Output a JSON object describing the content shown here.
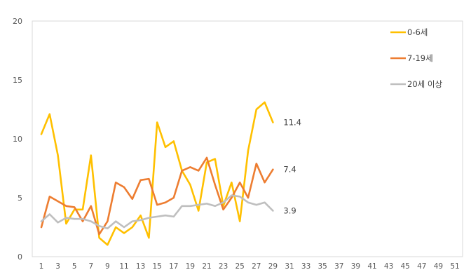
{
  "chart_data": {
    "type": "line",
    "xlabel": "",
    "ylabel": "",
    "ylim": [
      0,
      20
    ],
    "yticks": [
      "0",
      "5",
      "10",
      "15",
      "20"
    ],
    "xticks": [
      "1",
      "3",
      "5",
      "7",
      "9",
      "11",
      "13",
      "15",
      "17",
      "19",
      "21",
      "23",
      "25",
      "27",
      "29",
      "31",
      "33",
      "35",
      "37",
      "39",
      "41",
      "43",
      "45",
      "47",
      "49",
      "51"
    ],
    "x": [
      1,
      2,
      3,
      4,
      5,
      6,
      7,
      8,
      9,
      10,
      11,
      12,
      13,
      14,
      15,
      16,
      17,
      18,
      19,
      20,
      21,
      22,
      23,
      24,
      25,
      26,
      27,
      28,
      29
    ],
    "grid": false,
    "legend_position": "top-right",
    "series": [
      {
        "name": "0-6세",
        "color": "#FFC000",
        "values": [
          10.4,
          12.1,
          8.6,
          2.8,
          4.0,
          4.0,
          8.6,
          1.6,
          1.0,
          2.5,
          2.0,
          2.5,
          3.5,
          1.6,
          11.4,
          9.3,
          9.8,
          7.3,
          6.1,
          3.9,
          8.0,
          8.3,
          4.3,
          6.3,
          3.0,
          9.0,
          12.5,
          13.1,
          11.4
        ],
        "end_label": "11.4"
      },
      {
        "name": "7-19세",
        "color": "#ED7D31",
        "values": [
          2.5,
          5.1,
          4.7,
          4.3,
          4.2,
          3.0,
          4.3,
          1.9,
          3.0,
          6.3,
          5.9,
          4.9,
          6.5,
          6.6,
          4.4,
          4.6,
          5.0,
          7.3,
          7.6,
          7.3,
          8.4,
          6.1,
          4.0,
          5.0,
          6.3,
          5.0,
          7.9,
          6.3,
          7.4
        ],
        "end_label": "7.4"
      },
      {
        "name": "20세 이상",
        "color": "#BFBFBF",
        "values": [
          3.0,
          3.6,
          2.9,
          3.3,
          3.2,
          3.2,
          3.0,
          2.6,
          2.4,
          3.0,
          2.5,
          3.0,
          3.1,
          3.3,
          3.4,
          3.5,
          3.4,
          4.3,
          4.3,
          4.4,
          4.5,
          4.3,
          4.6,
          5.2,
          5.1,
          4.6,
          4.4,
          4.6,
          3.9
        ],
        "end_label": "3.9"
      }
    ]
  }
}
